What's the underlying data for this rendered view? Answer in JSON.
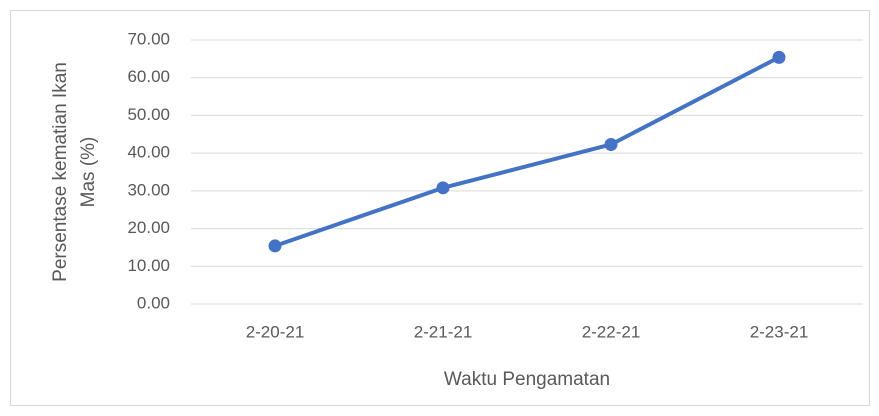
{
  "chart_data": {
    "type": "line",
    "ylabel": [
      "Persentase kematian Ikan",
      "Mas (%)"
    ],
    "xlabel": "Waktu Pengamatan",
    "categories": [
      "2-20-21",
      "2-21-21",
      "2-22-21",
      "2-23-21"
    ],
    "series": [
      {
        "name": "Persentase kematian Ikan Mas (%)",
        "color": "#4472c4",
        "values": [
          15.4,
          30.8,
          42.3,
          65.4
        ]
      }
    ],
    "ylim": [
      0,
      70
    ],
    "yticks": [
      {
        "value": 0,
        "label": "0.00"
      },
      {
        "value": 10,
        "label": "10.00"
      },
      {
        "value": 20,
        "label": "20.00"
      },
      {
        "value": 30,
        "label": "30.00"
      },
      {
        "value": 40,
        "label": "40.00"
      },
      {
        "value": 50,
        "label": "50.00"
      },
      {
        "value": 60,
        "label": "60.00"
      },
      {
        "value": 70,
        "label": "70.00"
      }
    ],
    "grid": true
  }
}
